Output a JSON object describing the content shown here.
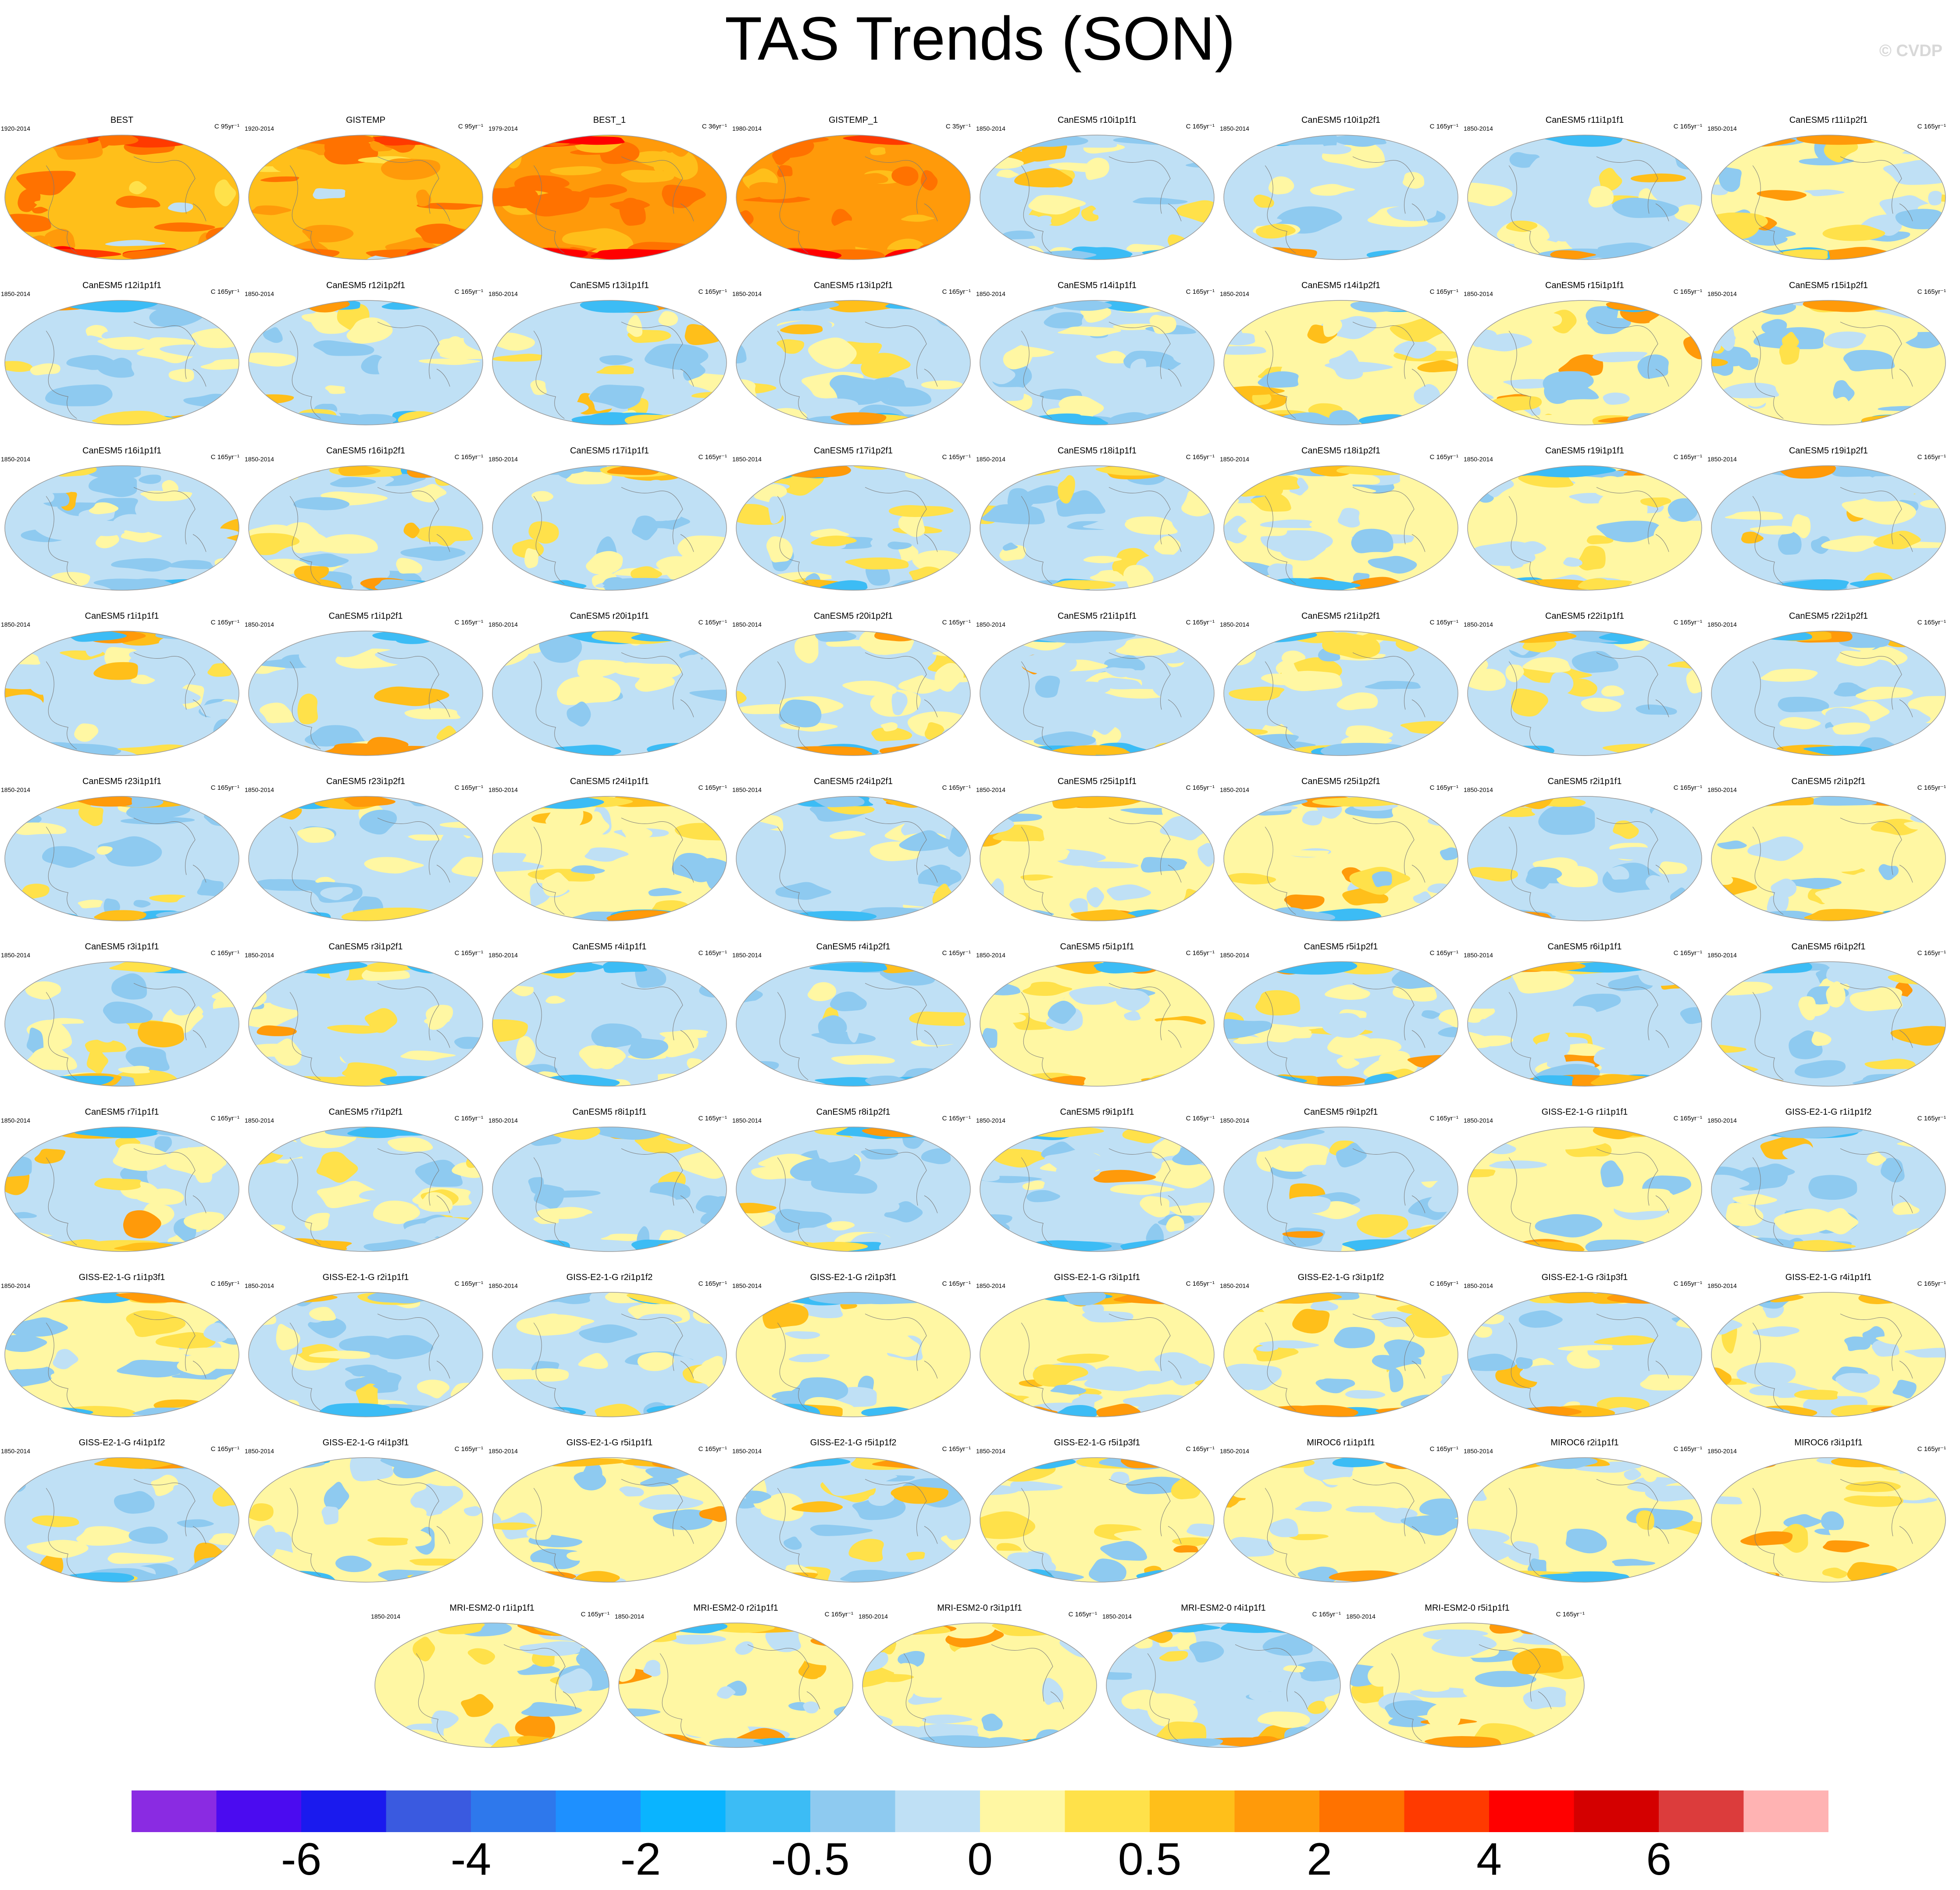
{
  "title": "TAS Trends (SON)",
  "watermark": "© CVDP",
  "chart_data": {
    "type": "heatmap",
    "projection": "global map panels (ellipse)",
    "variable": "TAS",
    "season": "SON",
    "colorbar": {
      "colors": [
        "#8a2be2",
        "#4b0bf0",
        "#1a1aee",
        "#3a5ae0",
        "#2e78ec",
        "#1e90ff",
        "#0ab4ff",
        "#3cbcf5",
        "#8ecaf0",
        "#bfe0f5",
        "#fff7a3",
        "#ffe14a",
        "#ffbf1a",
        "#ff9a0a",
        "#ff7200",
        "#ff3a00",
        "#ff0000",
        "#d40000",
        "#dc3c3c",
        "#ffb3b3"
      ],
      "tick_labels": [
        "-6",
        "-4",
        "-2",
        "-0.5",
        "0",
        "0.5",
        "2",
        "4",
        "6"
      ],
      "tick_boundaries": [
        2,
        4,
        6,
        8,
        10,
        12,
        14,
        16,
        18
      ]
    },
    "panels": [
      {
        "name": "BEST",
        "period": "1920-2014",
        "units": "C 95yr⁻¹",
        "dominant_class": 12,
        "bias": 0.9
      },
      {
        "name": "GISTEMP",
        "period": "1920-2014",
        "units": "C 95yr⁻¹",
        "dominant_class": 12,
        "bias": 0.9
      },
      {
        "name": "BEST_1",
        "period": "1979-2014",
        "units": "C 36yr⁻¹",
        "dominant_class": 13,
        "bias": 1.0
      },
      {
        "name": "GISTEMP_1",
        "period": "1980-2014",
        "units": "C 35yr⁻¹",
        "dominant_class": 13,
        "bias": 1.0
      },
      {
        "name": "CanESM5 r10i1p1f1",
        "period": "1850-2014",
        "units": "C 165yr⁻¹",
        "dominant_class": 9,
        "bias": 0.45
      },
      {
        "name": "CanESM5 r10i1p2f1",
        "period": "1850-2014",
        "units": "C 165yr⁻¹",
        "dominant_class": 9,
        "bias": 0.35
      },
      {
        "name": "CanESM5 r11i1p1f1",
        "period": "1850-2014",
        "units": "C 165yr⁻¹",
        "dominant_class": 9,
        "bias": 0.45
      },
      {
        "name": "CanESM5 r11i1p2f1",
        "period": "1850-2014",
        "units": "C 165yr⁻¹",
        "dominant_class": 10,
        "bias": 0.55
      },
      {
        "name": "CanESM5 r12i1p1f1",
        "period": "1850-2014",
        "units": "C 165yr⁻¹",
        "dominant_class": 9,
        "bias": 0.45
      },
      {
        "name": "CanESM5 r12i1p2f1",
        "period": "1850-2014",
        "units": "C 165yr⁻¹",
        "dominant_class": 9,
        "bias": 0.45
      },
      {
        "name": "CanESM5 r13i1p1f1",
        "period": "1850-2014",
        "units": "C 165yr⁻¹",
        "dominant_class": 9,
        "bias": 0.4
      },
      {
        "name": "CanESM5 r13i1p2f1",
        "period": "1850-2014",
        "units": "C 165yr⁻¹",
        "dominant_class": 9,
        "bias": 0.45
      },
      {
        "name": "CanESM5 r14i1p1f1",
        "period": "1850-2014",
        "units": "C 165yr⁻¹",
        "dominant_class": 9,
        "bias": 0.4
      },
      {
        "name": "CanESM5 r14i1p2f1",
        "period": "1850-2014",
        "units": "C 165yr⁻¹",
        "dominant_class": 10,
        "bias": 0.55
      },
      {
        "name": "CanESM5 r15i1p1f1",
        "period": "1850-2014",
        "units": "C 165yr⁻¹",
        "dominant_class": 10,
        "bias": 0.55
      },
      {
        "name": "CanESM5 r15i1p2f1",
        "period": "1850-2014",
        "units": "C 165yr⁻¹",
        "dominant_class": 10,
        "bias": 0.55
      },
      {
        "name": "CanESM5 r16i1p1f1",
        "period": "1850-2014",
        "units": "C 165yr⁻¹",
        "dominant_class": 9,
        "bias": 0.45
      },
      {
        "name": "CanESM5 r16i1p2f1",
        "period": "1850-2014",
        "units": "C 165yr⁻¹",
        "dominant_class": 9,
        "bias": 0.5
      },
      {
        "name": "CanESM5 r17i1p1f1",
        "period": "1850-2014",
        "units": "C 165yr⁻¹",
        "dominant_class": 9,
        "bias": 0.45
      },
      {
        "name": "CanESM5 r17i1p2f1",
        "period": "1850-2014",
        "units": "C 165yr⁻¹",
        "dominant_class": 9,
        "bias": 0.45
      },
      {
        "name": "CanESM5 r18i1p1f1",
        "period": "1850-2014",
        "units": "C 165yr⁻¹",
        "dominant_class": 9,
        "bias": 0.45
      },
      {
        "name": "CanESM5 r18i1p2f1",
        "period": "1850-2014",
        "units": "C 165yr⁻¹",
        "dominant_class": 10,
        "bias": 0.5
      },
      {
        "name": "CanESM5 r19i1p1f1",
        "period": "1850-2014",
        "units": "C 165yr⁻¹",
        "dominant_class": 10,
        "bias": 0.5
      },
      {
        "name": "CanESM5 r19i1p2f1",
        "period": "1850-2014",
        "units": "C 165yr⁻¹",
        "dominant_class": 9,
        "bias": 0.45
      },
      {
        "name": "CanESM5 r1i1p1f1",
        "period": "1850-2014",
        "units": "C 165yr⁻¹",
        "dominant_class": 9,
        "bias": 0.4
      },
      {
        "name": "CanESM5 r1i1p2f1",
        "period": "1850-2014",
        "units": "C 165yr⁻¹",
        "dominant_class": 9,
        "bias": 0.5
      },
      {
        "name": "CanESM5 r20i1p1f1",
        "period": "1850-2014",
        "units": "C 165yr⁻¹",
        "dominant_class": 9,
        "bias": 0.45
      },
      {
        "name": "CanESM5 r20i1p2f1",
        "period": "1850-2014",
        "units": "C 165yr⁻¹",
        "dominant_class": 9,
        "bias": 0.5
      },
      {
        "name": "CanESM5 r21i1p1f1",
        "period": "1850-2014",
        "units": "C 165yr⁻¹",
        "dominant_class": 9,
        "bias": 0.45
      },
      {
        "name": "CanESM5 r21i1p2f1",
        "period": "1850-2014",
        "units": "C 165yr⁻¹",
        "dominant_class": 9,
        "bias": 0.5
      },
      {
        "name": "CanESM5 r22i1p1f1",
        "period": "1850-2014",
        "units": "C 165yr⁻¹",
        "dominant_class": 9,
        "bias": 0.5
      },
      {
        "name": "CanESM5 r22i1p2f1",
        "period": "1850-2014",
        "units": "C 165yr⁻¹",
        "dominant_class": 9,
        "bias": 0.4
      },
      {
        "name": "CanESM5 r23i1p1f1",
        "period": "1850-2014",
        "units": "C 165yr⁻¹",
        "dominant_class": 9,
        "bias": 0.4
      },
      {
        "name": "CanESM5 r23i1p2f1",
        "period": "1850-2014",
        "units": "C 165yr⁻¹",
        "dominant_class": 9,
        "bias": 0.5
      },
      {
        "name": "CanESM5 r24i1p1f1",
        "period": "1850-2014",
        "units": "C 165yr⁻¹",
        "dominant_class": 10,
        "bias": 0.55
      },
      {
        "name": "CanESM5 r24i1p2f1",
        "period": "1850-2014",
        "units": "C 165yr⁻¹",
        "dominant_class": 9,
        "bias": 0.45
      },
      {
        "name": "CanESM5 r25i1p1f1",
        "period": "1850-2014",
        "units": "C 165yr⁻¹",
        "dominant_class": 10,
        "bias": 0.55
      },
      {
        "name": "CanESM5 r25i1p2f1",
        "period": "1850-2014",
        "units": "C 165yr⁻¹",
        "dominant_class": 10,
        "bias": 0.55
      },
      {
        "name": "CanESM5 r2i1p1f1",
        "period": "1850-2014",
        "units": "C 165yr⁻¹",
        "dominant_class": 9,
        "bias": 0.5
      },
      {
        "name": "CanESM5 r2i1p2f1",
        "period": "1850-2014",
        "units": "C 165yr⁻¹",
        "dominant_class": 10,
        "bias": 0.5
      },
      {
        "name": "CanESM5 r3i1p1f1",
        "period": "1850-2014",
        "units": "C 165yr⁻¹",
        "dominant_class": 9,
        "bias": 0.5
      },
      {
        "name": "CanESM5 r3i1p2f1",
        "period": "1850-2014",
        "units": "C 165yr⁻¹",
        "dominant_class": 9,
        "bias": 0.45
      },
      {
        "name": "CanESM5 r4i1p1f1",
        "period": "1850-2014",
        "units": "C 165yr⁻¹",
        "dominant_class": 9,
        "bias": 0.45
      },
      {
        "name": "CanESM5 r4i1p2f1",
        "period": "1850-2014",
        "units": "C 165yr⁻¹",
        "dominant_class": 9,
        "bias": 0.4
      },
      {
        "name": "CanESM5 r5i1p1f1",
        "period": "1850-2014",
        "units": "C 165yr⁻¹",
        "dominant_class": 10,
        "bias": 0.55
      },
      {
        "name": "CanESM5 r5i1p2f1",
        "period": "1850-2014",
        "units": "C 165yr⁻¹",
        "dominant_class": 9,
        "bias": 0.5
      },
      {
        "name": "CanESM5 r6i1p1f1",
        "period": "1850-2014",
        "units": "C 165yr⁻¹",
        "dominant_class": 9,
        "bias": 0.5
      },
      {
        "name": "CanESM5 r6i1p2f1",
        "period": "1850-2014",
        "units": "C 165yr⁻¹",
        "dominant_class": 9,
        "bias": 0.4
      },
      {
        "name": "CanESM5 r7i1p1f1",
        "period": "1850-2014",
        "units": "C 165yr⁻¹",
        "dominant_class": 9,
        "bias": 0.45
      },
      {
        "name": "CanESM5 r7i1p2f1",
        "period": "1850-2014",
        "units": "C 165yr⁻¹",
        "dominant_class": 9,
        "bias": 0.5
      },
      {
        "name": "CanESM5 r8i1p1f1",
        "period": "1850-2014",
        "units": "C 165yr⁻¹",
        "dominant_class": 9,
        "bias": 0.35
      },
      {
        "name": "CanESM5 r8i1p2f1",
        "period": "1850-2014",
        "units": "C 165yr⁻¹",
        "dominant_class": 9,
        "bias": 0.4
      },
      {
        "name": "CanESM5 r9i1p1f1",
        "period": "1850-2014",
        "units": "C 165yr⁻¹",
        "dominant_class": 9,
        "bias": 0.45
      },
      {
        "name": "CanESM5 r9i1p2f1",
        "period": "1850-2014",
        "units": "C 165yr⁻¹",
        "dominant_class": 9,
        "bias": 0.35
      },
      {
        "name": "GISS-E2-1-G r1i1p1f1",
        "period": "1850-2014",
        "units": "C 165yr⁻¹",
        "dominant_class": 10,
        "bias": 0.55
      },
      {
        "name": "GISS-E2-1-G r1i1p1f2",
        "period": "1850-2014",
        "units": "C 165yr⁻¹",
        "dominant_class": 9,
        "bias": 0.45
      },
      {
        "name": "GISS-E2-1-G r1i1p3f1",
        "period": "1850-2014",
        "units": "C 165yr⁻¹",
        "dominant_class": 10,
        "bias": 0.5
      },
      {
        "name": "GISS-E2-1-G r2i1p1f1",
        "period": "1850-2014",
        "units": "C 165yr⁻¹",
        "dominant_class": 9,
        "bias": 0.5
      },
      {
        "name": "GISS-E2-1-G r2i1p1f2",
        "period": "1850-2014",
        "units": "C 165yr⁻¹",
        "dominant_class": 9,
        "bias": 0.45
      },
      {
        "name": "GISS-E2-1-G r2i1p3f1",
        "period": "1850-2014",
        "units": "C 165yr⁻¹",
        "dominant_class": 10,
        "bias": 0.55
      },
      {
        "name": "GISS-E2-1-G r3i1p1f1",
        "period": "1850-2014",
        "units": "C 165yr⁻¹",
        "dominant_class": 10,
        "bias": 0.55
      },
      {
        "name": "GISS-E2-1-G r3i1p1f2",
        "period": "1850-2014",
        "units": "C 165yr⁻¹",
        "dominant_class": 10,
        "bias": 0.55
      },
      {
        "name": "GISS-E2-1-G r3i1p3f1",
        "period": "1850-2014",
        "units": "C 165yr⁻¹",
        "dominant_class": 9,
        "bias": 0.5
      },
      {
        "name": "GISS-E2-1-G r4i1p1f1",
        "period": "1850-2014",
        "units": "C 165yr⁻¹",
        "dominant_class": 10,
        "bias": 0.55
      },
      {
        "name": "GISS-E2-1-G r4i1p1f2",
        "period": "1850-2014",
        "units": "C 165yr⁻¹",
        "dominant_class": 9,
        "bias": 0.4
      },
      {
        "name": "GISS-E2-1-G r4i1p3f1",
        "period": "1850-2014",
        "units": "C 165yr⁻¹",
        "dominant_class": 10,
        "bias": 0.5
      },
      {
        "name": "GISS-E2-1-G r5i1p1f1",
        "period": "1850-2014",
        "units": "C 165yr⁻¹",
        "dominant_class": 10,
        "bias": 0.5
      },
      {
        "name": "GISS-E2-1-G r5i1p1f2",
        "period": "1850-2014",
        "units": "C 165yr⁻¹",
        "dominant_class": 9,
        "bias": 0.45
      },
      {
        "name": "GISS-E2-1-G r5i1p3f1",
        "period": "1850-2014",
        "units": "C 165yr⁻¹",
        "dominant_class": 10,
        "bias": 0.6
      },
      {
        "name": "MIROC6 r1i1p1f1",
        "period": "1850-2014",
        "units": "C 165yr⁻¹",
        "dominant_class": 10,
        "bias": 0.6
      },
      {
        "name": "MIROC6 r2i1p1f1",
        "period": "1850-2014",
        "units": "C 165yr⁻¹",
        "dominant_class": 10,
        "bias": 0.6
      },
      {
        "name": "MIROC6 r3i1p1f1",
        "period": "1850-2014",
        "units": "C 165yr⁻¹",
        "dominant_class": 10,
        "bias": 0.6
      },
      {
        "name": "MRI-ESM2-0 r1i1p1f1",
        "period": "1850-2014",
        "units": "C 165yr⁻¹",
        "dominant_class": 10,
        "bias": 0.55
      },
      {
        "name": "MRI-ESM2-0 r2i1p1f1",
        "period": "1850-2014",
        "units": "C 165yr⁻¹",
        "dominant_class": 10,
        "bias": 0.6
      },
      {
        "name": "MRI-ESM2-0 r3i1p1f1",
        "period": "1850-2014",
        "units": "C 165yr⁻¹",
        "dominant_class": 10,
        "bias": 0.55
      },
      {
        "name": "MRI-ESM2-0 r4i1p1f1",
        "period": "1850-2014",
        "units": "C 165yr⁻¹",
        "dominant_class": 9,
        "bias": 0.45
      },
      {
        "name": "MRI-ESM2-0 r5i1p1f1",
        "period": "1850-2014",
        "units": "C 165yr⁻¹",
        "dominant_class": 10,
        "bias": 0.55
      }
    ]
  }
}
